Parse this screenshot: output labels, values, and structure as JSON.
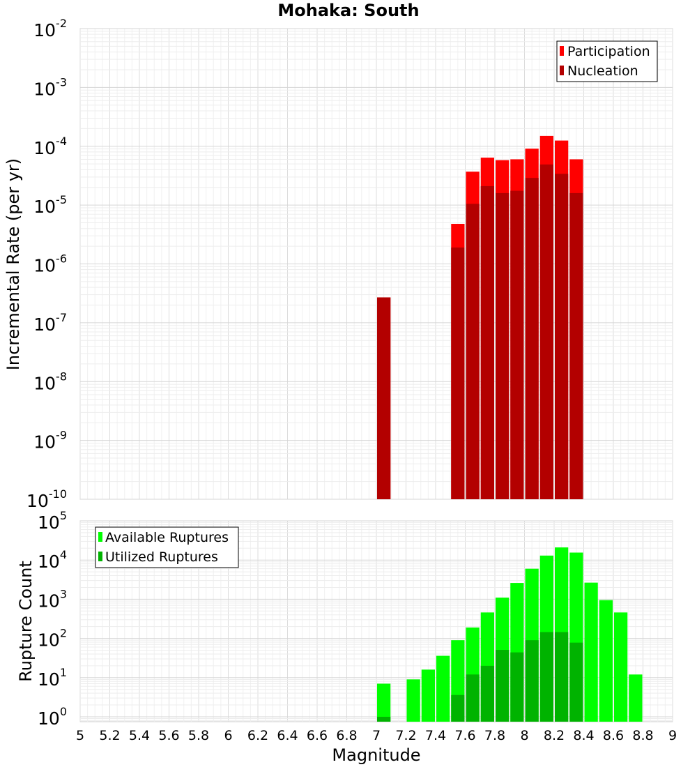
{
  "chart_data": [
    {
      "type": "bar",
      "title": "Mohaka: South",
      "xlabel": "",
      "ylabel": "Incremental Rate (per yr)",
      "yscale": "log",
      "ylim": [
        1e-10,
        0.01
      ],
      "xlim": [
        5,
        9
      ],
      "bar_width": 0.1,
      "grid": true,
      "legend_position": "top-right",
      "y_ticks": [
        {
          "base": "10",
          "exp": "-2"
        },
        {
          "base": "10",
          "exp": "-3"
        },
        {
          "base": "10",
          "exp": "-4"
        },
        {
          "base": "10",
          "exp": "-5"
        },
        {
          "base": "10",
          "exp": "-6"
        },
        {
          "base": "10",
          "exp": "-7"
        },
        {
          "base": "10",
          "exp": "-8"
        },
        {
          "base": "10",
          "exp": "-9"
        },
        {
          "base": "10",
          "exp": "-10"
        }
      ],
      "x": [
        7.05,
        7.55,
        7.65,
        7.75,
        7.85,
        7.95,
        8.05,
        8.15,
        8.25,
        8.35
      ],
      "series": [
        {
          "name": "Participation",
          "color": "#ff0000",
          "values": [
            2.7e-07,
            4.8e-06,
            3.7e-05,
            6.4e-05,
            5.8e-05,
            6e-05,
            9.1e-05,
            0.00015,
            0.000125,
            6e-05
          ]
        },
        {
          "name": "Nucleation",
          "color": "#b30000",
          "values": [
            2.7e-07,
            1.9e-06,
            1.05e-05,
            2.1e-05,
            1.6e-05,
            1.75e-05,
            2.9e-05,
            4.9e-05,
            3.4e-05,
            1.6e-05
          ]
        }
      ]
    },
    {
      "type": "bar",
      "title": "",
      "xlabel": "Magnitude",
      "ylabel": "Rupture Count",
      "yscale": "log",
      "ylim": [
        0.75,
        100000.0
      ],
      "xlim": [
        5,
        9
      ],
      "bar_width": 0.1,
      "grid": true,
      "legend_position": "top-left",
      "x_ticks": [
        "5",
        "5.2",
        "5.4",
        "5.6",
        "5.8",
        "6",
        "6.2",
        "6.4",
        "6.6",
        "6.8",
        "7",
        "7.2",
        "7.4",
        "7.6",
        "7.8",
        "8",
        "8.2",
        "8.4",
        "8.6",
        "8.8",
        "9"
      ],
      "y_ticks": [
        {
          "base": "10",
          "exp": "5"
        },
        {
          "base": "10",
          "exp": "4"
        },
        {
          "base": "10",
          "exp": "3"
        },
        {
          "base": "10",
          "exp": "2"
        },
        {
          "base": "10",
          "exp": "1"
        },
        {
          "base": "10",
          "exp": "0"
        }
      ],
      "x": [
        7.05,
        7.25,
        7.35,
        7.45,
        7.55,
        7.65,
        7.75,
        7.85,
        7.95,
        8.05,
        8.15,
        8.25,
        8.35,
        8.45,
        8.55,
        8.65,
        8.75
      ],
      "series": [
        {
          "name": "Available Ruptures",
          "color": "#00ff00",
          "values": [
            7,
            9,
            16,
            36,
            90,
            190,
            460,
            1100,
            2600,
            6000,
            13000,
            21000,
            15500,
            2650,
            950,
            460,
            12
          ]
        },
        {
          "name": "Utilized Ruptures",
          "color": "#00b300",
          "values": [
            1,
            0,
            0,
            0,
            3.6,
            12,
            20,
            51,
            44,
            90,
            145,
            145,
            78,
            0,
            0,
            0,
            0
          ]
        }
      ]
    }
  ]
}
